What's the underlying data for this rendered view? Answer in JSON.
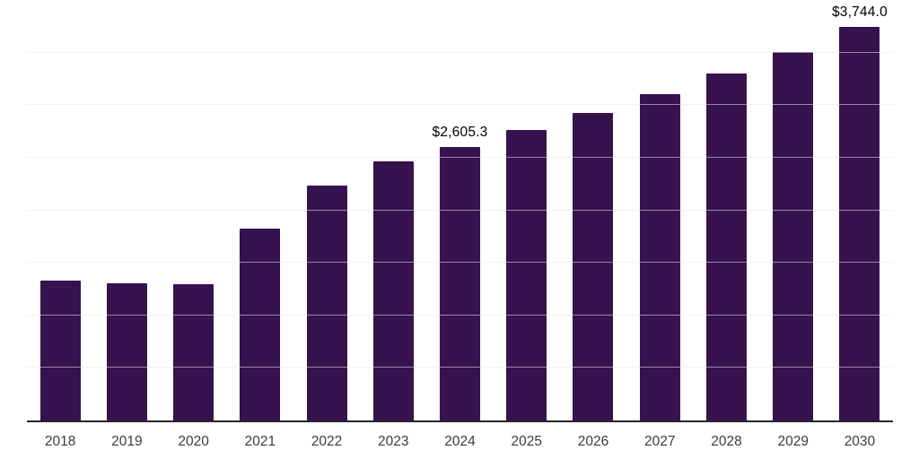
{
  "chart_data": {
    "type": "bar",
    "categories": [
      "2018",
      "2019",
      "2020",
      "2021",
      "2022",
      "2023",
      "2024",
      "2025",
      "2026",
      "2027",
      "2028",
      "2029",
      "2030"
    ],
    "values": [
      1333,
      1308,
      1295,
      1829,
      2231,
      2461,
      2605.3,
      2761,
      2923,
      3104,
      3300,
      3504,
      3744.0
    ],
    "data_labels": [
      "",
      "",
      "",
      "",
      "",
      "",
      "$2,605.3",
      "",
      "",
      "",
      "",
      "",
      "$3,744.0"
    ],
    "title": "",
    "xlabel": "",
    "ylabel": "",
    "ylim": [
      0,
      4000
    ],
    "gridline_step": 500,
    "grid": true,
    "legend": false,
    "colors": {
      "bar": "#36124E",
      "axis_line": "#262626",
      "gridline": "rgba(234,234,234,0.55)",
      "value_label_text": "#000000",
      "tick_label_text": "#3c3c3c",
      "background": "#ffffff"
    }
  }
}
